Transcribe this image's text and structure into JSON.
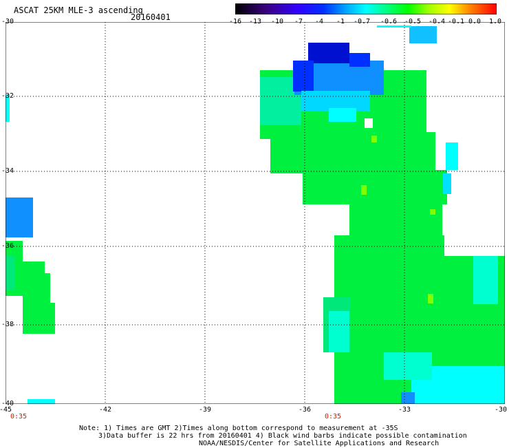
{
  "header": {
    "title": "ASCAT 25KM MLE-3 ascending",
    "date": "20160401"
  },
  "colorbar": {
    "labels": [
      "-16",
      "-13",
      "-10",
      "-7",
      "-4",
      "-1",
      "-0.7",
      "-0.6",
      "-0.5",
      "-0.4",
      "-0.1",
      "0.0",
      "1.0"
    ],
    "colors": [
      "#000000",
      "#3a0080",
      "#5a00c8",
      "#0000ff",
      "#0066ff",
      "#00b4ff",
      "#00ffff",
      "#00ff80",
      "#20ff00",
      "#a0ff00",
      "#ffff00",
      "#ff8000",
      "#ff0000"
    ]
  },
  "map": {
    "lat_labels": [
      "-30",
      "-32",
      "-34",
      "-36",
      "-38",
      "-40"
    ],
    "lon_labels": [
      "-45",
      "-42",
      "-39",
      "-36",
      "-33",
      "-30"
    ],
    "pass_times": [
      "0:35",
      "0:35"
    ],
    "colors": {
      "green": "#00f040",
      "cyan": "#00ffff",
      "light_blue": "#1090ff",
      "blue": "#0030ff",
      "dark_blue": "#0010d0",
      "yellow_green": "#80ff00",
      "grid": "#000000"
    }
  },
  "notes": {
    "line1": "Note: 1) Times are GMT 2)Times along bottom correspond to measurement at -35S",
    "line2": "3)Data buffer is 22 hrs from 20160401 4) Black wind barbs indicate possible contamination",
    "line3": "NOAA/NESDIS/Center for Satellite Applications and Research"
  }
}
